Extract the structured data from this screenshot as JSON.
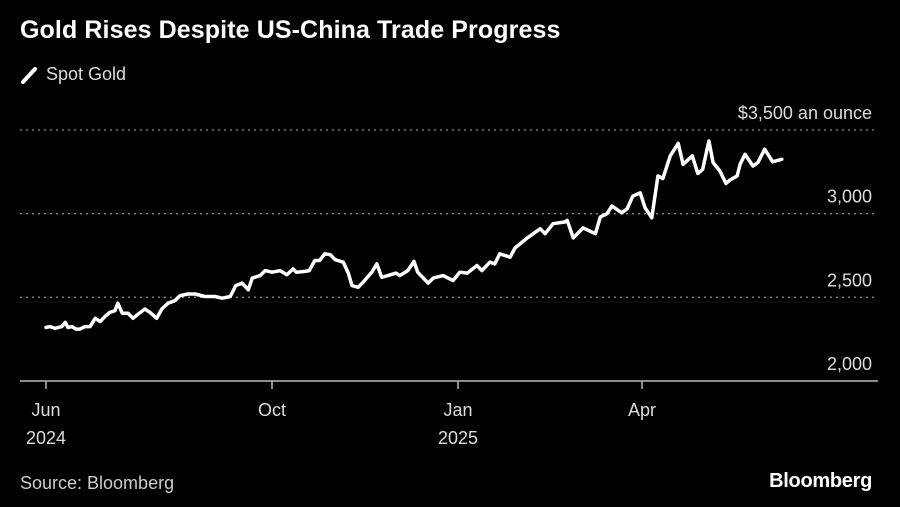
{
  "title": "Gold Rises Despite US-China Trade Progress",
  "legend": {
    "label": "Spot Gold",
    "icon": "line-swatch-icon"
  },
  "source": "Source: Bloomberg",
  "logo": "Bloomberg",
  "colors": {
    "background": "#000000",
    "line": "#ffffff",
    "grid": "#888888"
  },
  "chart_data": {
    "type": "line",
    "title": "Gold Rises Despite US-China Trade Progress",
    "xlabel": "",
    "ylabel": "$ an ounce",
    "ylim": [
      2000,
      3500
    ],
    "grid": true,
    "legend_position": "top-left",
    "y_ticks": [
      {
        "value": 3500,
        "label": "$3,500 an ounce"
      },
      {
        "value": 3000,
        "label": "3,000"
      },
      {
        "value": 2500,
        "label": "2,500"
      },
      {
        "value": 2000,
        "label": "2,000"
      }
    ],
    "x_unit": "months since Jun 1, 2024",
    "x_ticks": [
      {
        "value": 0,
        "label": "Jun",
        "sublabel": "2024"
      },
      {
        "value": 4,
        "label": "Oct",
        "sublabel": ""
      },
      {
        "value": 7,
        "label": "Jan",
        "sublabel": "2025"
      },
      {
        "value": 10,
        "label": "Apr",
        "sublabel": ""
      }
    ],
    "series": [
      {
        "name": "Spot Gold",
        "x": [
          0,
          0.07,
          0.16,
          0.28,
          0.34,
          0.39,
          0.46,
          0.53,
          0.6,
          0.69,
          0.78,
          0.87,
          0.96,
          1.04,
          1.13,
          1.22,
          1.27,
          1.35,
          1.45,
          1.54,
          1.63,
          1.75,
          1.84,
          1.96,
          2.05,
          2.16,
          2.28,
          2.37,
          2.51,
          2.64,
          2.81,
          2.99,
          3.12,
          3.26,
          3.36,
          3.47,
          3.58,
          3.65,
          3.79,
          3.88,
          4.0,
          4.13,
          4.24,
          4.34,
          4.39,
          4.53,
          4.6,
          4.69,
          4.77,
          4.85,
          4.94,
          5.02,
          5.15,
          5.23,
          5.29,
          5.39,
          5.48,
          5.61,
          5.69,
          5.77,
          5.87,
          6.0,
          6.06,
          6.19,
          6.29,
          6.35,
          6.52,
          6.6,
          6.76,
          6.92,
          7.03,
          7.15,
          7.31,
          7.39,
          7.52,
          7.6,
          7.68,
          7.85,
          7.93,
          8.13,
          8.34,
          8.42,
          8.55,
          8.74,
          8.78,
          8.88,
          9.04,
          9.24,
          9.32,
          9.43,
          9.51,
          9.67,
          9.76,
          9.85,
          9.97,
          10.05,
          10.16,
          10.26,
          10.34,
          10.46,
          10.59,
          10.67,
          10.82,
          10.91,
          10.99,
          11.09,
          11.16,
          11.27,
          11.37,
          11.43,
          11.55,
          11.6,
          11.68,
          11.81,
          11.89,
          12.0,
          12.13,
          12.28
        ],
        "values": [
          2320,
          2325,
          2315,
          2325,
          2350,
          2320,
          2325,
          2310,
          2310,
          2325,
          2325,
          2375,
          2355,
          2385,
          2410,
          2420,
          2465,
          2405,
          2405,
          2375,
          2400,
          2430,
          2410,
          2375,
          2430,
          2465,
          2480,
          2510,
          2520,
          2520,
          2505,
          2505,
          2495,
          2505,
          2570,
          2585,
          2545,
          2615,
          2630,
          2660,
          2650,
          2660,
          2635,
          2670,
          2650,
          2655,
          2660,
          2720,
          2720,
          2760,
          2755,
          2725,
          2710,
          2645,
          2570,
          2560,
          2595,
          2650,
          2700,
          2620,
          2630,
          2645,
          2630,
          2660,
          2715,
          2650,
          2585,
          2615,
          2630,
          2600,
          2650,
          2645,
          2690,
          2660,
          2710,
          2700,
          2760,
          2740,
          2795,
          2855,
          2910,
          2880,
          2940,
          2950,
          2960,
          2855,
          2915,
          2880,
          2980,
          3000,
          3045,
          3005,
          3030,
          3105,
          3125,
          3035,
          2975,
          3225,
          3210,
          3345,
          3420,
          3295,
          3345,
          3240,
          3265,
          3435,
          3305,
          3255,
          3180,
          3200,
          3225,
          3295,
          3355,
          3285,
          3305,
          3385,
          3310,
          3325
        ]
      }
    ]
  }
}
